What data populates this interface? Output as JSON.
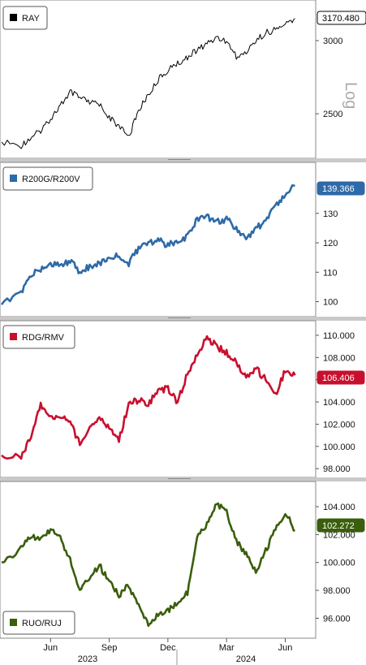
{
  "chart_data": {
    "type": "line",
    "x_axis": {
      "months": [
        "Jun",
        "Sep",
        "Dec",
        "Mar",
        "Jun"
      ],
      "years": [
        "2023",
        "2024"
      ]
    },
    "panels": [
      {
        "id": "ray",
        "legend": "RAY",
        "color": "#000000",
        "last_label": "3170.480",
        "last_label_bg": "#ffffff",
        "last_label_fg": "#000000",
        "scale": "log",
        "scale_label": "Log",
        "yticks": [
          "3000",
          "2500"
        ],
        "ylim": [
          2260,
          3240
        ],
        "series": {
          "name": "RAY",
          "x": [
            "2023-04",
            "2023-05",
            "2023-05",
            "2023-06",
            "2023-06",
            "2023-07",
            "2023-07",
            "2023-08",
            "2023-08",
            "2023-09",
            "2023-09",
            "2023-10",
            "2023-10",
            "2023-11",
            "2023-11",
            "2023-12",
            "2023-12",
            "2024-01",
            "2024-01",
            "2024-02",
            "2024-02",
            "2024-03",
            "2024-03",
            "2024-04",
            "2024-04",
            "2024-05",
            "2024-05",
            "2024-06",
            "2024-06",
            "2024-07"
          ],
          "y": [
            2330,
            2310,
            2360,
            2400,
            2470,
            2550,
            2640,
            2600,
            2570,
            2560,
            2480,
            2420,
            2360,
            2520,
            2620,
            2720,
            2790,
            2830,
            2880,
            2930,
            2980,
            3020,
            3000,
            2880,
            2910,
            3000,
            3060,
            3080,
            3120,
            3170
          ]
        }
      },
      {
        "id": "growth-value",
        "legend": "R200G/R200V",
        "color": "#2e6aa8",
        "last_label": "139.366",
        "last_label_bg": "#2e6aa8",
        "last_label_fg": "#ffffff",
        "scale": "linear",
        "yticks": [
          "130",
          "120",
          "110",
          "100"
        ],
        "ylim": [
          96,
          144
        ],
        "series": {
          "name": "R200G/R200V",
          "x": [
            "2023-04",
            "2023-05",
            "2023-05",
            "2023-06",
            "2023-06",
            "2023-07",
            "2023-07",
            "2023-08",
            "2023-08",
            "2023-09",
            "2023-09",
            "2023-10",
            "2023-10",
            "2023-11",
            "2023-11",
            "2023-12",
            "2023-12",
            "2024-01",
            "2024-01",
            "2024-02",
            "2024-02",
            "2024-03",
            "2024-03",
            "2024-04",
            "2024-04",
            "2024-05",
            "2024-05",
            "2024-06",
            "2024-06",
            "2024-07"
          ],
          "y": [
            99,
            103,
            109,
            111,
            113,
            112,
            114,
            110,
            112,
            113,
            115,
            116,
            113,
            118,
            120,
            121,
            119,
            121,
            122,
            128,
            129,
            127,
            128,
            125,
            121,
            125,
            127,
            133,
            136,
            139.4
          ]
        }
      },
      {
        "id": "rdg-rmv",
        "legend": "RDG/RMV",
        "color": "#c8102e",
        "last_label": "106.406",
        "last_label_bg": "#c8102e",
        "last_label_fg": "#ffffff",
        "scale": "linear",
        "yticks": [
          "110.000",
          "108.000",
          "106.000",
          "104.000",
          "102.000",
          "100.000",
          "98.000"
        ],
        "ylim": [
          97.5,
          110.8
        ],
        "series": {
          "name": "RDG/RMV",
          "x": [
            "2023-04",
            "2023-05",
            "2023-05",
            "2023-06",
            "2023-06",
            "2023-07",
            "2023-07",
            "2023-08",
            "2023-08",
            "2023-09",
            "2023-09",
            "2023-10",
            "2023-10",
            "2023-11",
            "2023-11",
            "2023-12",
            "2023-12",
            "2024-01",
            "2024-01",
            "2024-02",
            "2024-02",
            "2024-03",
            "2024-03",
            "2024-04",
            "2024-04",
            "2024-05",
            "2024-05",
            "2024-06",
            "2024-06",
            "2024-07"
          ],
          "y": [
            99.2,
            99.0,
            101.0,
            103.8,
            102.6,
            102.8,
            102.2,
            100.2,
            101.6,
            102.6,
            101.6,
            100.6,
            103.8,
            104.2,
            103.8,
            105.0,
            105.2,
            104.0,
            106.6,
            108.2,
            109.8,
            109.0,
            108.4,
            107.6,
            106.2,
            107.0,
            106.0,
            104.6,
            106.8,
            106.4
          ]
        }
      },
      {
        "id": "ruo-ruj",
        "legend": "RUO/RUJ",
        "color": "#3a5e0c",
        "last_label": "102.272",
        "last_label_bg": "#3a5e0c",
        "last_label_fg": "#ffffff",
        "scale": "linear",
        "yticks": [
          "104.000",
          "102.000",
          "100.000",
          "98.000",
          "96.000"
        ],
        "ylim": [
          94.8,
          105.4
        ],
        "series": {
          "name": "RUO/RUJ",
          "x": [
            "2023-04",
            "2023-05",
            "2023-05",
            "2023-06",
            "2023-06",
            "2023-07",
            "2023-07",
            "2023-08",
            "2023-08",
            "2023-09",
            "2023-09",
            "2023-10",
            "2023-10",
            "2023-11",
            "2023-11",
            "2023-12",
            "2023-12",
            "2024-01",
            "2024-01",
            "2024-02",
            "2024-02",
            "2024-03",
            "2024-03",
            "2024-04",
            "2024-04",
            "2024-05",
            "2024-05",
            "2024-06",
            "2024-06",
            "2024-07"
          ],
          "y": [
            100.0,
            101.0,
            102.0,
            101.6,
            102.4,
            101.8,
            100.2,
            98.0,
            99.0,
            99.8,
            98.6,
            97.6,
            98.4,
            96.8,
            95.6,
            96.2,
            96.6,
            97.0,
            97.8,
            102.0,
            102.8,
            104.2,
            103.6,
            101.6,
            100.6,
            99.2,
            100.8,
            102.4,
            103.6,
            102.3
          ]
        }
      }
    ]
  }
}
